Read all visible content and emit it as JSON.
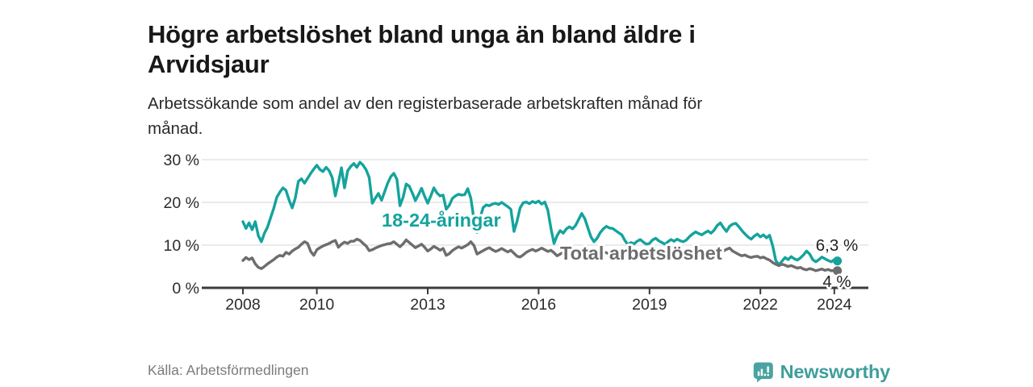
{
  "header": {
    "title_lines": [
      "Högre arbetslöshet bland unga än bland äldre i",
      "Arvidsjaur"
    ],
    "subtitle_lines": [
      "Arbetssökande som andel av den registerbaserade arbetskraften månad för",
      "månad."
    ]
  },
  "footer": {
    "source": "Källa: Arbetsförmedlingen",
    "brand": "Newsworthy"
  },
  "colors": {
    "accent_teal": "#14a39d",
    "line_gray": "#6d6d6d",
    "grid": "#d7d7d7",
    "axis": "#3b3b3b",
    "brand_teal": "#3f9e9c",
    "text_dark": "#181818",
    "text_muted": "#7b7b7b"
  },
  "chart_data": {
    "type": "line",
    "title": "Högre arbetslöshet bland unga än bland äldre i Arvidsjaur",
    "subtitle": "Arbetssökande som andel av den registerbaserade arbetskraften månad för månad.",
    "x_unit": "month",
    "x_start": "2008-01",
    "x_end": "2024-02",
    "xlabel": "",
    "ylabel": "",
    "ylim": [
      0,
      32
    ],
    "grid": "horizontal",
    "legend": "inline-labels",
    "x_ticks": [
      "2008",
      "2010",
      "2013",
      "2016",
      "2019",
      "2022",
      "2024"
    ],
    "y_ticks": [
      {
        "value": 0,
        "label": "0 %"
      },
      {
        "value": 10,
        "label": "10 %"
      },
      {
        "value": 20,
        "label": "20 %"
      },
      {
        "value": 30,
        "label": "30 %"
      }
    ],
    "y_gridlines": [
      10,
      20,
      30
    ],
    "series": [
      {
        "name": "18-24-åringar",
        "color": "#14a39d",
        "end_label": "6,3 %",
        "values": [
          15.5,
          13.9,
          15.2,
          13.6,
          15.5,
          12.2,
          10.8,
          12.8,
          14.2,
          16.4,
          18.6,
          21.2,
          22.4,
          23.4,
          22.8,
          20.5,
          18.7,
          21.0,
          24.9,
          25.5,
          24.5,
          25.6,
          26.8,
          27.8,
          28.7,
          27.7,
          27.2,
          28.2,
          27.4,
          25.8,
          21.5,
          24.6,
          28.1,
          23.4,
          27.4,
          28.4,
          29.1,
          28.2,
          29.4,
          28.7,
          27.6,
          25.8,
          19.8,
          21.0,
          22.1,
          20.5,
          22.5,
          24.5,
          26.0,
          26.8,
          25.4,
          19.2,
          21.2,
          24.3,
          23.8,
          22.2,
          20.4,
          21.8,
          23.3,
          21.4,
          19.8,
          21.5,
          23.4,
          22.2,
          21.5,
          21.7,
          18.4,
          19.3,
          20.9,
          21.5,
          21.9,
          21.7,
          21.8,
          23.2,
          21.0,
          16.0,
          13.0,
          16.4,
          18.8,
          19.4,
          19.2,
          19.6,
          19.8,
          19.5,
          20.0,
          19.5,
          19.0,
          18.4,
          13.2,
          15.6,
          18.7,
          19.9,
          20.1,
          19.7,
          20.2,
          19.9,
          20.3,
          19.6,
          20.1,
          18.2,
          13.9,
          10.4,
          12.2,
          13.4,
          12.8,
          13.8,
          14.3,
          13.8,
          14.6,
          16.0,
          17.4,
          16.2,
          14.0,
          11.9,
          10.8,
          11.6,
          12.9,
          13.8,
          14.4,
          14.0,
          13.9,
          13.4,
          12.9,
          12.4,
          11.1,
          10.1,
          10.6,
          10.3,
          10.9,
          11.3,
          10.7,
          10.2,
          10.4,
          11.2,
          11.6,
          11.0,
          10.6,
          10.2,
          10.8,
          11.3,
          10.9,
          11.4,
          11.0,
          10.8,
          11.2,
          12.0,
          12.6,
          13.1,
          12.7,
          12.4,
          12.9,
          13.3,
          12.8,
          13.5,
          14.6,
          15.2,
          14.1,
          13.2,
          14.4,
          14.9,
          15.1,
          14.3,
          13.4,
          12.6,
          11.9,
          11.4,
          12.1,
          12.6,
          11.9,
          12.4,
          11.7,
          12.3,
          9.8,
          6.4,
          5.4,
          6.2,
          7.1,
          6.6,
          7.3,
          6.8,
          6.5,
          7.0,
          7.7,
          8.6,
          7.9,
          6.6,
          6.1,
          6.6,
          7.2,
          6.8,
          6.4,
          6.1,
          6.6,
          6.3
        ]
      },
      {
        "name": "Total arbetslöshet",
        "color": "#6d6d6d",
        "end_label": "4 %",
        "values": [
          6.4,
          7.1,
          6.6,
          7.0,
          5.6,
          4.8,
          4.5,
          5.0,
          5.6,
          6.1,
          6.6,
          7.2,
          7.6,
          7.4,
          8.3,
          7.9,
          8.6,
          9.1,
          9.5,
          10.2,
          10.8,
          10.4,
          8.5,
          7.6,
          8.9,
          9.4,
          9.8,
          10.1,
          10.4,
          10.8,
          11.1,
          9.5,
          10.2,
          10.7,
          10.4,
          10.9,
          10.9,
          11.4,
          11.1,
          10.4,
          9.8,
          8.7,
          8.9,
          9.3,
          9.6,
          9.9,
          10.1,
          10.3,
          10.4,
          10.8,
          10.2,
          9.6,
          10.3,
          11.2,
          10.6,
          10.0,
          9.4,
          9.8,
          10.2,
          9.5,
          8.6,
          9.1,
          9.7,
          9.3,
          8.8,
          9.2,
          7.6,
          8.0,
          8.7,
          9.2,
          9.6,
          9.3,
          9.7,
          10.1,
          10.8,
          9.9,
          7.9,
          8.3,
          8.7,
          9.1,
          9.4,
          8.9,
          8.5,
          8.8,
          9.2,
          8.8,
          8.4,
          8.8,
          8.1,
          7.4,
          7.2,
          7.7,
          8.3,
          8.7,
          9.0,
          8.6,
          8.9,
          9.3,
          8.9,
          8.5,
          8.8,
          8.2,
          7.5,
          7.9,
          8.3,
          8.6,
          8.4,
          8.1,
          8.4,
          8.7,
          8.3,
          7.9,
          8.2,
          7.6,
          7.3,
          7.8,
          8.1,
          8.4,
          8.2,
          7.9,
          8.2,
          8.5,
          8.1,
          7.8,
          8.0,
          7.4,
          7.1,
          7.5,
          7.9,
          8.2,
          8.0,
          7.8,
          8.1,
          8.4,
          8.6,
          8.2,
          7.9,
          7.7,
          8.0,
          8.3,
          8.1,
          8.4,
          8.2,
          8.0,
          8.3,
          8.6,
          8.9,
          9.1,
          8.8,
          8.5,
          8.7,
          8.9,
          8.6,
          8.8,
          9.0,
          9.3,
          8.6,
          9.0,
          9.3,
          8.6,
          8.2,
          7.8,
          7.5,
          7.7,
          7.3,
          7.1,
          7.3,
          7.4,
          7.0,
          7.2,
          6.8,
          6.5,
          5.9,
          5.5,
          5.2,
          5.5,
          5.3,
          5.0,
          5.2,
          4.9,
          4.6,
          4.8,
          4.4,
          4.2,
          4.5,
          4.3,
          4.0,
          4.2,
          4.4,
          4.1,
          4.3,
          4.0,
          4.1,
          4.0
        ]
      }
    ]
  }
}
